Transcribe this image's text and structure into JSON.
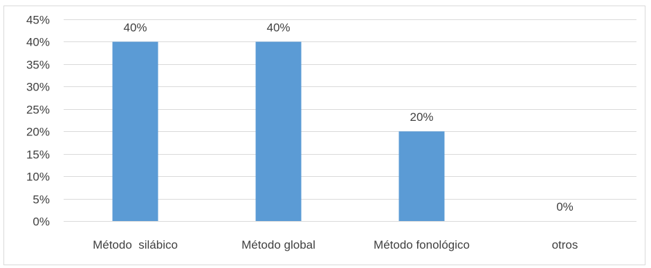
{
  "chart_data": {
    "type": "bar",
    "categories": [
      "Método  silábico",
      "Método global",
      "Método fonológico",
      "otros"
    ],
    "values": [
      40,
      40,
      20,
      0
    ],
    "data_labels": [
      "40%",
      "40%",
      "20%",
      "0%"
    ],
    "title": "",
    "xlabel": "",
    "ylabel": "",
    "ylim": [
      0,
      45
    ],
    "y_ticks": [
      0,
      5,
      10,
      15,
      20,
      25,
      30,
      35,
      40,
      45
    ],
    "y_tick_labels": [
      "0%",
      "5%",
      "10%",
      "15%",
      "20%",
      "25%",
      "30%",
      "35%",
      "40%",
      "45%"
    ],
    "grid": true,
    "legend": "none",
    "colors": {
      "bar": "#5b9bd5",
      "grid": "#d9d9d9",
      "text": "#404040"
    }
  }
}
